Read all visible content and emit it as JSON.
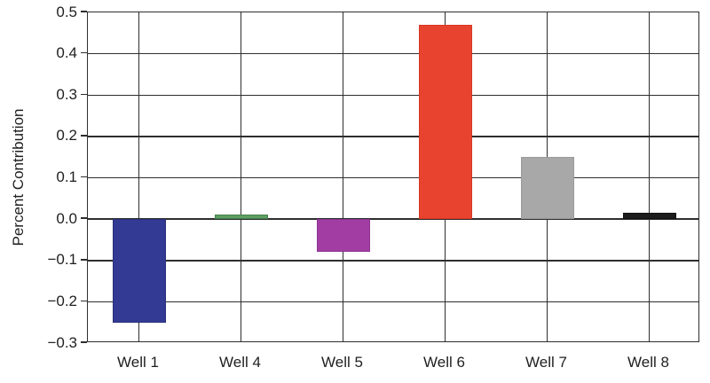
{
  "figure": {
    "background": "#ffffff",
    "grid_color": "#2e2e2e",
    "text_color": "#1f1f1f"
  },
  "chart_data": {
    "type": "bar",
    "title": "",
    "xlabel": "",
    "ylabel": "Percent Contribution",
    "categories": [
      "Well 1",
      "Well 4",
      "Well 5",
      "Well 6",
      "Well 7",
      "Well 8"
    ],
    "values": [
      -0.25,
      0.01,
      -0.08,
      0.47,
      0.15,
      0.015
    ],
    "bar_colors": [
      "#333a94",
      "#5d9f62",
      "#a23ea3",
      "#e8432e",
      "#a8a8a8",
      "#1c1c1c"
    ],
    "bar_edge_colors": [
      "#2a3078",
      "#44804c",
      "#8c3390",
      "#d63824",
      "#9a9a9a",
      "#111111"
    ],
    "ylim": [
      -0.3,
      0.5
    ],
    "yticks": [
      0.5,
      0.4,
      0.3,
      0.2,
      0.1,
      0.0,
      -0.1,
      -0.2,
      -0.3
    ],
    "ytick_labels": [
      "0.5",
      "0.4",
      "0.3",
      "0.2",
      "0.1",
      "0.0",
      "−0.1",
      "−0.2",
      "−0.3"
    ],
    "grid": true,
    "legend": "none"
  }
}
